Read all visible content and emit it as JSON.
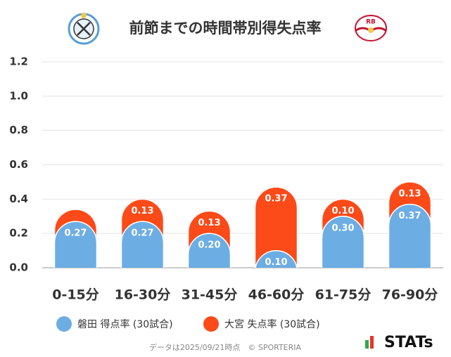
{
  "chart_data": {
    "type": "bar",
    "stacked": true,
    "title": "前節までの時間帯別得失点率",
    "categories": [
      "0-15分",
      "16-30分",
      "31-45分",
      "46-60分",
      "61-75分",
      "76-90分"
    ],
    "series": [
      {
        "name": "磐田 得点率 (30試合)",
        "color": "#6cade4",
        "values": [
          0.27,
          0.27,
          0.2,
          0.1,
          0.3,
          0.37
        ],
        "value_labels": [
          "0.27",
          "0.27",
          "0.20",
          "0.10",
          "0.30",
          "0.37"
        ]
      },
      {
        "name": "大宮 失点率 (30試合)",
        "color": "#fc4a18",
        "values": [
          0.07,
          0.13,
          0.13,
          0.37,
          0.1,
          0.13
        ],
        "value_labels": [
          null,
          "0.13",
          "0.13",
          "0.37",
          "0.10",
          "0.13"
        ]
      }
    ],
    "ylim": [
      0,
      1.2
    ],
    "yticks": [
      {
        "value": 0,
        "label": "0.0"
      },
      0.2,
      0.4,
      0.6,
      0.8,
      {
        "value": 1,
        "label": "1.0"
      },
      1.2
    ],
    "grid": true,
    "footnote": "データは2025/09/21時点　© SPORTERIA",
    "logo_text": "STATs"
  }
}
